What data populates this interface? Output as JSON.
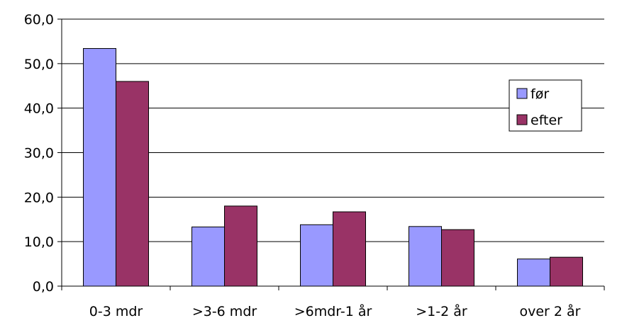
{
  "chart_data": {
    "type": "bar",
    "categories": [
      "0-3 mdr",
      ">3-6 mdr",
      ">6mdr-1 år",
      ">1-2 år",
      "over 2 år"
    ],
    "series": [
      {
        "name": "før",
        "color": "#9999ff",
        "values": [
          53.4,
          13.3,
          13.8,
          13.4,
          6.1
        ]
      },
      {
        "name": "efter",
        "color": "#993366",
        "values": [
          46.0,
          18.0,
          16.7,
          12.7,
          6.5
        ]
      }
    ],
    "y_ticks": [
      "0,0",
      "10,0",
      "20,0",
      "30,0",
      "40,0",
      "50,0",
      "60,0"
    ],
    "ylim": [
      0,
      60
    ],
    "grid": true,
    "legend_position": "right",
    "title": "",
    "xlabel": "",
    "ylabel": ""
  }
}
